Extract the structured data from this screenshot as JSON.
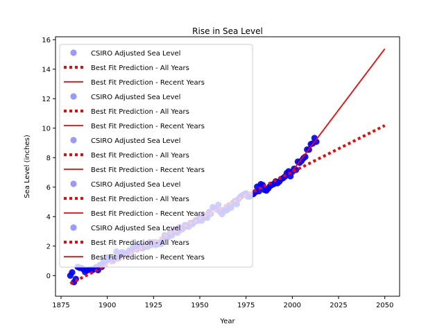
{
  "chart_data": {
    "type": "scatter",
    "title": "Rise in Sea Level",
    "xlabel": "Year",
    "ylabel": "Sea Level (inches)",
    "xlim": [
      1872,
      2058
    ],
    "ylim": [
      -1.4,
      16.2
    ],
    "xticks": [
      1875,
      1900,
      1925,
      1950,
      1975,
      2000,
      2025,
      2050
    ],
    "yticks": [
      0,
      2,
      4,
      6,
      8,
      10,
      12,
      14,
      16
    ],
    "grid": false,
    "legend_position": "top-left",
    "legend_entries": [
      "CSIRO Adjusted Sea Level",
      "Best Fit Prediction - All Years",
      "Best Fit Prediction - Recent Years",
      "CSIRO Adjusted Sea Level",
      "Best Fit Prediction - All Years",
      "Best Fit Prediction - Recent Years",
      "CSIRO Adjusted Sea Level",
      "Best Fit Prediction - All Years",
      "Best Fit Prediction - Recent Years",
      "CSIRO Adjusted Sea Level",
      "Best Fit Prediction - All Years",
      "Best Fit Prediction - Recent Years",
      "CSIRO Adjusted Sea Level",
      "Best Fit Prediction - All Years",
      "Best Fit Prediction - Recent Years"
    ],
    "series": [
      {
        "name": "CSIRO Adjusted Sea Level",
        "kind": "scatter",
        "color": "#0000ff",
        "x": [
          1880,
          1881,
          1882,
          1883,
          1884,
          1885,
          1886,
          1887,
          1888,
          1889,
          1890,
          1891,
          1892,
          1893,
          1894,
          1895,
          1896,
          1897,
          1898,
          1899,
          1900,
          1901,
          1902,
          1903,
          1904,
          1905,
          1906,
          1907,
          1908,
          1909,
          1910,
          1911,
          1912,
          1913,
          1914,
          1915,
          1916,
          1917,
          1918,
          1919,
          1920,
          1921,
          1922,
          1923,
          1924,
          1925,
          1926,
          1927,
          1928,
          1929,
          1930,
          1931,
          1932,
          1933,
          1934,
          1935,
          1936,
          1937,
          1938,
          1939,
          1940,
          1941,
          1942,
          1943,
          1944,
          1945,
          1946,
          1947,
          1948,
          1949,
          1950,
          1951,
          1952,
          1953,
          1954,
          1955,
          1956,
          1957,
          1958,
          1959,
          1960,
          1961,
          1962,
          1963,
          1964,
          1965,
          1966,
          1967,
          1968,
          1969,
          1970,
          1971,
          1972,
          1973,
          1974,
          1975,
          1976,
          1977,
          1978,
          1979,
          1980,
          1981,
          1982,
          1983,
          1984,
          1985,
          1986,
          1987,
          1988,
          1989,
          1990,
          1991,
          1992,
          1993,
          1994,
          1995,
          1996,
          1997,
          1998,
          1999,
          2000,
          2001,
          2002,
          2003,
          2004,
          2005,
          2006,
          2007,
          2008,
          2009,
          2010,
          2011,
          2012,
          2013
        ],
        "y": [
          0.0,
          0.22,
          -0.44,
          -0.23,
          0.59,
          0.53,
          0.51,
          0.44,
          0.25,
          0.36,
          0.39,
          0.42,
          0.37,
          0.48,
          0.57,
          0.37,
          0.73,
          0.59,
          1.0,
          0.91,
          1.25,
          1.09,
          1.09,
          0.99,
          1.13,
          1.63,
          1.17,
          1.31,
          1.59,
          1.47,
          1.53,
          1.48,
          1.71,
          1.63,
          1.96,
          1.99,
          1.77,
          2.07,
          2.05,
          1.85,
          1.93,
          2.05,
          1.96,
          2.26,
          2.09,
          2.26,
          2.08,
          2.11,
          2.25,
          2.14,
          2.41,
          2.74,
          2.62,
          2.61,
          2.93,
          2.73,
          3.0,
          3.11,
          2.91,
          3.28,
          3.12,
          3.2,
          3.43,
          3.38,
          3.31,
          3.57,
          3.49,
          3.63,
          3.78,
          3.72,
          3.95,
          3.72,
          4.1,
          3.94,
          3.92,
          4.31,
          4.19,
          4.64,
          4.58,
          4.49,
          4.8,
          4.33,
          4.17,
          4.46,
          4.41,
          4.47,
          4.78,
          4.61,
          4.93,
          5.06,
          4.85,
          5.21,
          5.35,
          5.45,
          5.52,
          5.58,
          5.36,
          5.36,
          5.48,
          5.54,
          5.66,
          6.03,
          5.73,
          6.2,
          6.14,
          5.81,
          5.77,
          5.91,
          6.07,
          6.16,
          6.21,
          6.39,
          6.27,
          6.38,
          6.55,
          6.61,
          6.72,
          6.95,
          7.07,
          6.74,
          7.04,
          7.25,
          7.17,
          7.73,
          7.66,
          7.78,
          7.96,
          8.06,
          8.55,
          8.54,
          8.91,
          8.96,
          9.33,
          9.08
        ]
      },
      {
        "name": "Best Fit Prediction - All Years",
        "kind": "line",
        "style": "dotted",
        "color": "#ff0000",
        "x": [
          1880,
          2050
        ],
        "y": [
          -0.54,
          10.18
        ]
      },
      {
        "name": "Best Fit Prediction - Recent Years",
        "kind": "line",
        "style": "solid",
        "color": "#ff0000",
        "x": [
          2000,
          2050
        ],
        "y": [
          7.08,
          15.38
        ]
      }
    ]
  }
}
